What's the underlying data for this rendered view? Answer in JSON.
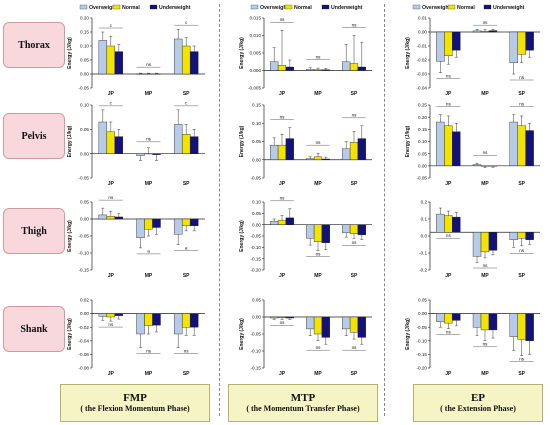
{
  "rows": [
    "Thorax",
    "Pelvis",
    "Thigh",
    "Shank"
  ],
  "phases": [
    {
      "abbr": "FMP",
      "full": "( the Flexion Momentum Phase)"
    },
    {
      "abbr": "MTP",
      "full": "( the Momentum Transfer Phase)"
    },
    {
      "abbr": "EP",
      "full": "( the Extension Phase)"
    }
  ],
  "legend": [
    "Overweight",
    "Normal",
    "Underweight"
  ],
  "colors": {
    "overweight": "#b7cbe8",
    "normal": "#f2e300",
    "underweight": "#12127a",
    "row_label_bg": "#f8d8dc",
    "phase_box_bg": "#f5f4c4"
  },
  "chart_data": [
    {
      "type": "bar",
      "id": "FMP-Thorax",
      "categories": [
        "JP",
        "MP",
        "SP"
      ],
      "ylabel": "Energy (J/kg)",
      "ylim": [
        -0.05,
        0.2
      ],
      "yticks": [
        "-0.05",
        "0.00",
        "0.05",
        "0.10",
        "0.15",
        "0.20"
      ],
      "series": [
        {
          "name": "Overweight",
          "values": [
            0.12,
            0.0,
            0.125
          ]
        },
        {
          "name": "Normal",
          "values": [
            0.1,
            0.0,
            0.1
          ]
        },
        {
          "name": "Underweight",
          "values": [
            0.08,
            0.0,
            0.08
          ]
        }
      ],
      "errors": [
        [
          0.03,
          0.003,
          0.035
        ],
        [
          0.035,
          0.003,
          0.03
        ],
        [
          0.025,
          0.003,
          0.02
        ]
      ],
      "annotations": [
        {
          "cat": "JP",
          "text": "c",
          "level": 0
        },
        {
          "cat": "MP",
          "text": "ns",
          "level": 1
        },
        {
          "cat": "SP",
          "text": "c",
          "level": 0
        }
      ]
    },
    {
      "type": "bar",
      "id": "MTP-Thorax",
      "categories": [
        "JP",
        "MP",
        "SP"
      ],
      "ylabel": "Energy (J/kg)",
      "ylim": [
        -0.005,
        0.015
      ],
      "yticks": [
        "-0.005",
        "0.000",
        "0.005",
        "0.010",
        "0.015"
      ],
      "series": [
        {
          "name": "Overweight",
          "values": [
            0.0025,
            0.0003,
            0.0025
          ]
        },
        {
          "name": "Normal",
          "values": [
            0.0015,
            0.0002,
            0.002
          ]
        },
        {
          "name": "Underweight",
          "values": [
            0.001,
            0.0002,
            0.001
          ]
        }
      ],
      "errors": [
        [
          0.004,
          0.0005,
          0.005
        ],
        [
          0.01,
          0.0005,
          0.008
        ],
        [
          0.002,
          0.0004,
          0.007
        ]
      ],
      "annotations": [
        {
          "cat": "JP",
          "text": "ns",
          "level": 2
        },
        {
          "cat": "MP",
          "text": "ns",
          "level": 2
        },
        {
          "cat": "SP",
          "text": "ns",
          "level": 2
        }
      ]
    },
    {
      "type": "bar",
      "id": "EP-Thorax",
      "categories": [
        "JP",
        "MP",
        "SP"
      ],
      "ylabel": "Energy (J/kg)",
      "ylim": [
        -0.04,
        0.01
      ],
      "yticks": [
        "-0.04",
        "-0.03",
        "-0.02",
        "-0.01",
        "0.00",
        "0.01"
      ],
      "series": [
        {
          "name": "Overweight",
          "values": [
            -0.021,
            0.0008,
            -0.022
          ]
        },
        {
          "name": "Normal",
          "values": [
            -0.017,
            0.0006,
            -0.016
          ]
        },
        {
          "name": "Underweight",
          "values": [
            -0.013,
            0.001,
            -0.013
          ]
        }
      ],
      "errors": [
        [
          0.008,
          0.001,
          0.008
        ],
        [
          0.006,
          0.001,
          0.006
        ],
        [
          0.005,
          0.001,
          0.005
        ]
      ],
      "annotations": [
        {
          "cat": "JP",
          "text": "ns",
          "level": -1
        },
        {
          "cat": "MP",
          "text": "ns",
          "level": 0
        },
        {
          "cat": "SP",
          "text": "ns",
          "level": -1
        }
      ]
    },
    {
      "type": "bar",
      "id": "FMP-Pelvis",
      "categories": [
        "JP",
        "MP",
        "SP"
      ],
      "ylabel": "Energy (J/kg)",
      "ylim": [
        -0.05,
        0.1
      ],
      "yticks": [
        "-0.05",
        "0.00",
        "0.05",
        "0.10"
      ],
      "series": [
        {
          "name": "Overweight",
          "values": [
            0.065,
            -0.004,
            0.06
          ]
        },
        {
          "name": "Normal",
          "values": [
            0.045,
            0.0,
            0.04
          ]
        },
        {
          "name": "Underweight",
          "values": [
            0.035,
            -0.002,
            0.035
          ]
        }
      ],
      "errors": [
        [
          0.025,
          0.01,
          0.03
        ],
        [
          0.02,
          0.012,
          0.02
        ],
        [
          0.015,
          0.012,
          0.015
        ]
      ],
      "annotations": [
        {
          "cat": "JP",
          "text": "c",
          "level": 0
        },
        {
          "cat": "MP",
          "text": "ns",
          "level": 1
        },
        {
          "cat": "SP",
          "text": "c",
          "level": 0
        }
      ]
    },
    {
      "type": "bar",
      "id": "MTP-Pelvis",
      "categories": [
        "JP",
        "MP",
        "SP"
      ],
      "ylabel": "Energy (J/kg)",
      "ylim": [
        -0.05,
        0.15
      ],
      "yticks": [
        "-0.05",
        "0.00",
        "0.05",
        "0.10",
        "0.15"
      ],
      "series": [
        {
          "name": "Overweight",
          "values": [
            0.04,
            0.003,
            0.03
          ]
        },
        {
          "name": "Normal",
          "values": [
            0.04,
            0.008,
            0.048
          ]
        },
        {
          "name": "Underweight",
          "values": [
            0.058,
            0.002,
            0.058
          ]
        }
      ],
      "errors": [
        [
          0.02,
          0.005,
          0.02
        ],
        [
          0.03,
          0.01,
          0.03
        ],
        [
          0.03,
          0.005,
          0.035
        ]
      ],
      "annotations": [
        {
          "cat": "JP",
          "text": "ns",
          "level": 2
        },
        {
          "cat": "MP",
          "text": "ns",
          "level": 2
        },
        {
          "cat": "SP",
          "text": "ns",
          "level": 2
        }
      ]
    },
    {
      "type": "bar",
      "id": "EP-Pelvis",
      "categories": [
        "JP",
        "MP",
        "SP"
      ],
      "ylabel": "Energy (J/kg)",
      "ylim": [
        -0.05,
        0.25
      ],
      "yticks": [
        "-0.05",
        "0.00",
        "0.05",
        "0.10",
        "0.15",
        "0.20",
        "0.25"
      ],
      "series": [
        {
          "name": "Overweight",
          "values": [
            0.18,
            0.005,
            0.18
          ]
        },
        {
          "name": "Normal",
          "values": [
            0.165,
            -0.002,
            0.165
          ]
        },
        {
          "name": "Underweight",
          "values": [
            0.14,
            -0.001,
            0.145
          ]
        }
      ],
      "errors": [
        [
          0.03,
          0.005,
          0.03
        ],
        [
          0.04,
          0.005,
          0.04
        ],
        [
          0.035,
          0.005,
          0.03
        ]
      ],
      "annotations": [
        {
          "cat": "JP",
          "text": "ns",
          "level": 2
        },
        {
          "cat": "MP",
          "text": "ns",
          "level": 2
        },
        {
          "cat": "SP",
          "text": "ns",
          "level": 2
        }
      ]
    },
    {
      "type": "bar",
      "id": "FMP-Thigh",
      "categories": [
        "JP",
        "MP",
        "SP"
      ],
      "ylabel": "Energy (J/kg)",
      "ylim": [
        -0.15,
        0.05
      ],
      "yticks": [
        "-0.15",
        "-0.10",
        "-0.05",
        "0.00",
        "0.05"
      ],
      "series": [
        {
          "name": "Overweight",
          "values": [
            0.012,
            -0.055,
            -0.045
          ]
        },
        {
          "name": "Normal",
          "values": [
            0.008,
            -0.03,
            -0.02
          ]
        },
        {
          "name": "Underweight",
          "values": [
            0.006,
            -0.025,
            -0.02
          ]
        }
      ],
      "errors": [
        [
          0.02,
          0.03,
          0.03
        ],
        [
          0.015,
          0.02,
          0.015
        ],
        [
          0.01,
          0.02,
          0.015
        ]
      ],
      "annotations": [
        {
          "cat": "JP",
          "text": "ns",
          "level": 2
        },
        {
          "cat": "MP",
          "text": "a",
          "level": -1
        },
        {
          "cat": "SP",
          "text": "a",
          "level": -1
        }
      ]
    },
    {
      "type": "bar",
      "id": "MTP-Thigh",
      "categories": [
        "JP",
        "MP",
        "SP"
      ],
      "ylabel": "Energy (J/kg)",
      "ylim": [
        -0.2,
        0.1
      ],
      "yticks": [
        "-0.20",
        "-0.15",
        "-0.10",
        "-0.05",
        "0.00",
        "0.05",
        "0.10"
      ],
      "series": [
        {
          "name": "Overweight",
          "values": [
            0.015,
            -0.06,
            -0.035
          ]
        },
        {
          "name": "Normal",
          "values": [
            0.02,
            -0.075,
            -0.04
          ]
        },
        {
          "name": "Underweight",
          "values": [
            0.03,
            -0.08,
            -0.045
          ]
        }
      ],
      "errors": [
        [
          0.01,
          0.03,
          0.02
        ],
        [
          0.02,
          0.04,
          0.02
        ],
        [
          0.04,
          0.03,
          0.02
        ]
      ],
      "annotations": [
        {
          "cat": "JP",
          "text": "ns",
          "level": 2
        },
        {
          "cat": "MP",
          "text": "ns",
          "level": -1
        },
        {
          "cat": "SP",
          "text": "ns",
          "level": -1
        }
      ]
    },
    {
      "type": "bar",
      "id": "EP-Thigh",
      "categories": [
        "JP",
        "MP",
        "SP"
      ],
      "ylabel": "",
      "ylim": [
        -0.25,
        0.2
      ],
      "yticks": [
        "-0.2",
        "-0.1",
        "0.0",
        "0.1",
        "0.2"
      ],
      "series": [
        {
          "name": "Overweight",
          "values": [
            0.12,
            -0.16,
            -0.05
          ]
        },
        {
          "name": "Normal",
          "values": [
            0.11,
            -0.13,
            -0.04
          ]
        },
        {
          "name": "Underweight",
          "values": [
            0.1,
            -0.12,
            -0.05
          ]
        }
      ],
      "errors": [
        [
          0.04,
          0.04,
          0.05
        ],
        [
          0.03,
          0.04,
          0.05
        ],
        [
          0.03,
          0.03,
          0.03
        ]
      ],
      "annotations": [
        {
          "cat": "JP",
          "text": "ns",
          "level": -1
        },
        {
          "cat": "MP",
          "text": "ns",
          "level": -1
        },
        {
          "cat": "SP",
          "text": "ns",
          "level": -1
        }
      ]
    },
    {
      "type": "bar",
      "id": "FMP-Shank",
      "categories": [
        "JP",
        "MP",
        "SP"
      ],
      "ylabel": "Energy (J/kg)",
      "ylim": [
        -0.08,
        0.02
      ],
      "yticks": [
        "-0.08",
        "-0.06",
        "-0.04",
        "-0.02",
        "0.00",
        "0.02"
      ],
      "series": [
        {
          "name": "Overweight",
          "values": [
            -0.004,
            -0.03,
            -0.03
          ]
        },
        {
          "name": "Normal",
          "values": [
            -0.005,
            -0.018,
            -0.02
          ]
        },
        {
          "name": "Underweight",
          "values": [
            -0.003,
            -0.017,
            -0.02
          ]
        }
      ],
      "errors": [
        [
          0.006,
          0.02,
          0.02
        ],
        [
          0.006,
          0.012,
          0.012
        ],
        [
          0.005,
          0.01,
          0.012
        ]
      ],
      "annotations": [
        {
          "cat": "JP",
          "text": "ns",
          "level": -1
        },
        {
          "cat": "MP",
          "text": "ns",
          "level": -1
        },
        {
          "cat": "SP",
          "text": "ns",
          "level": -1
        }
      ]
    },
    {
      "type": "bar",
      "id": "MTP-Shank",
      "categories": [
        "JP",
        "MP",
        "SP"
      ],
      "ylabel": "Energy (J/kg)",
      "ylim": [
        -0.15,
        0.05
      ],
      "yticks": [
        "-0.15",
        "-0.10",
        "-0.05",
        "0.00",
        "0.05"
      ],
      "series": [
        {
          "name": "Overweight",
          "values": [
            -0.003,
            -0.035,
            -0.035
          ]
        },
        {
          "name": "Normal",
          "values": [
            -0.002,
            -0.05,
            -0.045
          ]
        },
        {
          "name": "Underweight",
          "values": [
            -0.003,
            -0.06,
            -0.06
          ]
        }
      ],
      "errors": [
        [
          0.004,
          0.02,
          0.02
        ],
        [
          0.005,
          0.02,
          0.02
        ],
        [
          0.004,
          0.02,
          0.02
        ]
      ],
      "annotations": [
        {
          "cat": "JP",
          "text": "ns",
          "level": -1
        },
        {
          "cat": "MP",
          "text": "ns",
          "level": -1
        },
        {
          "cat": "SP",
          "text": "ns",
          "level": -1
        }
      ]
    },
    {
      "type": "bar",
      "id": "EP-Shank",
      "categories": [
        "JP",
        "MP",
        "SP"
      ],
      "ylabel": "Energy (J/kg)",
      "ylim": [
        -0.2,
        0.05
      ],
      "yticks": [
        "-0.20",
        "-0.15",
        "-0.10",
        "-0.05",
        "0.00",
        "0.05"
      ],
      "series": [
        {
          "name": "Overweight",
          "values": [
            -0.03,
            -0.05,
            -0.085
          ]
        },
        {
          "name": "Normal",
          "values": [
            -0.035,
            -0.06,
            -0.095
          ]
        },
        {
          "name": "Underweight",
          "values": [
            -0.025,
            -0.06,
            -0.1
          ]
        }
      ],
      "errors": [
        [
          0.02,
          0.03,
          0.05
        ],
        [
          0.02,
          0.04,
          0.06
        ],
        [
          0.02,
          0.03,
          0.05
        ]
      ],
      "annotations": [
        {
          "cat": "JP",
          "text": "ns",
          "level": -1
        },
        {
          "cat": "MP",
          "text": "ns",
          "level": -1
        },
        {
          "cat": "SP",
          "text": "ns",
          "level": -1
        }
      ]
    }
  ]
}
